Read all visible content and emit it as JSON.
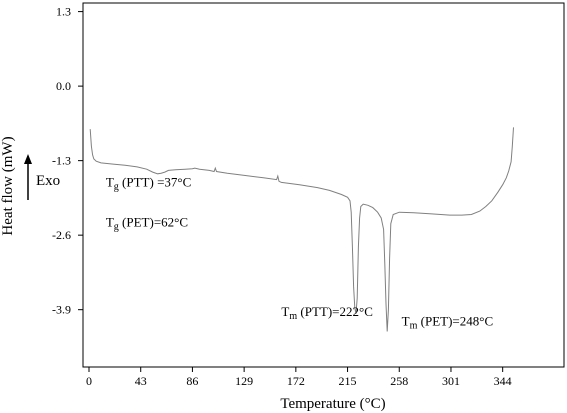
{
  "chart_data": {
    "type": "line",
    "xlabel": "Temperature (°C)",
    "ylabel": "Heat flow (mW)",
    "xlim": [
      -5,
      395
    ],
    "ylim": [
      -4.9,
      1.45
    ],
    "x_ticks": [
      "0",
      "43",
      "86",
      "129",
      "172",
      "215",
      "258",
      "301",
      "344"
    ],
    "y_ticks": [
      "1.3",
      "0.0",
      "-1.3",
      "-2.6",
      "-3.9"
    ],
    "grid": false,
    "series": [
      {
        "points": [
          [
            1,
            -0.75
          ],
          [
            2,
            -1.05
          ],
          [
            3,
            -1.2
          ],
          [
            4,
            -1.27
          ],
          [
            6,
            -1.31
          ],
          [
            10,
            -1.34
          ],
          [
            20,
            -1.36
          ],
          [
            30,
            -1.38
          ],
          [
            40,
            -1.41
          ],
          [
            48,
            -1.45
          ],
          [
            53,
            -1.5
          ],
          [
            57,
            -1.53
          ],
          [
            60,
            -1.52
          ],
          [
            63,
            -1.5
          ],
          [
            66,
            -1.47
          ],
          [
            72,
            -1.46
          ],
          [
            80,
            -1.45
          ],
          [
            86,
            -1.44
          ],
          [
            88,
            -1.43
          ],
          [
            92,
            -1.45
          ],
          [
            100,
            -1.47
          ],
          [
            104,
            -1.49
          ],
          [
            105,
            -1.43
          ],
          [
            106,
            -1.49
          ],
          [
            115,
            -1.52
          ],
          [
            130,
            -1.56
          ],
          [
            145,
            -1.6
          ],
          [
            156,
            -1.63
          ],
          [
            157,
            -1.57
          ],
          [
            158,
            -1.66
          ],
          [
            160,
            -1.68
          ],
          [
            175,
            -1.72
          ],
          [
            190,
            -1.77
          ],
          [
            200,
            -1.82
          ],
          [
            210,
            -1.89
          ],
          [
            215,
            -1.94
          ],
          [
            217,
            -2.0
          ],
          [
            218,
            -2.2
          ],
          [
            219,
            -2.8
          ],
          [
            220,
            -3.5
          ],
          [
            221,
            -3.87
          ],
          [
            222,
            -3.97
          ],
          [
            223,
            -3.7
          ],
          [
            224,
            -2.8
          ],
          [
            225,
            -2.3
          ],
          [
            226,
            -2.1
          ],
          [
            228,
            -2.06
          ],
          [
            232,
            -2.08
          ],
          [
            236,
            -2.12
          ],
          [
            240,
            -2.2
          ],
          [
            243,
            -2.3
          ],
          [
            245,
            -2.5
          ],
          [
            246,
            -3.1
          ],
          [
            247,
            -3.8
          ],
          [
            248,
            -4.28
          ],
          [
            249,
            -3.9
          ],
          [
            250,
            -3.0
          ],
          [
            251,
            -2.4
          ],
          [
            253,
            -2.24
          ],
          [
            258,
            -2.2
          ],
          [
            270,
            -2.21
          ],
          [
            285,
            -2.23
          ],
          [
            300,
            -2.25
          ],
          [
            310,
            -2.25
          ],
          [
            318,
            -2.24
          ],
          [
            325,
            -2.18
          ],
          [
            330,
            -2.1
          ],
          [
            335,
            -2.0
          ],
          [
            340,
            -1.85
          ],
          [
            344,
            -1.72
          ],
          [
            347,
            -1.6
          ],
          [
            349,
            -1.48
          ],
          [
            351,
            -1.32
          ],
          [
            352,
            -1.05
          ],
          [
            353,
            -0.72
          ]
        ]
      }
    ],
    "annotations": [
      {
        "base": "T",
        "sub": "g",
        "text": " (PTT) =37°C",
        "x": 14,
        "y": -1.75
      },
      {
        "base": "T",
        "sub": "g",
        "text": " (PET)=62°C",
        "x": 14,
        "y": -2.45
      },
      {
        "base": "T",
        "sub": "m",
        "text": " (PTT)=222°C",
        "x": 160,
        "y": -4.01
      },
      {
        "base": "T",
        "sub": "m",
        "text": " (PET)=248°C",
        "x": 260,
        "y": -4.18
      }
    ],
    "exo_label": "Exo"
  }
}
